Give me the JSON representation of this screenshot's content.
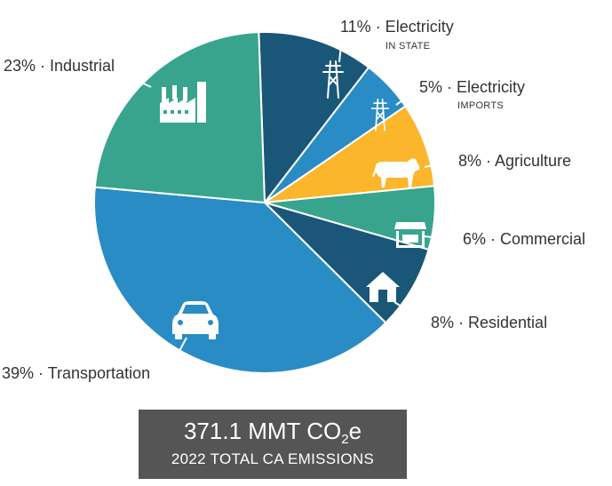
{
  "chart_data": {
    "type": "pie",
    "slices": [
      {
        "label": "Electricity",
        "sublabel": "IN STATE",
        "value": 11,
        "percent_label": "11%",
        "color": "#1a5678",
        "icon": "power-tower-icon"
      },
      {
        "label": "Electricity",
        "sublabel": "IMPORTS",
        "value": 5,
        "percent_label": "5%",
        "color": "#2a8cc4",
        "icon": "power-tower-icon"
      },
      {
        "label": "Agriculture",
        "value": 8,
        "percent_label": "8%",
        "color": "#fbb62b",
        "icon": "cow-icon"
      },
      {
        "label": "Commercial",
        "value": 6,
        "percent_label": "6%",
        "color": "#38a48e",
        "icon": "storefront-icon"
      },
      {
        "label": "Residential",
        "value": 8,
        "percent_label": "8%",
        "color": "#1a5678",
        "icon": "house-icon"
      },
      {
        "label": "Transportation",
        "value": 39,
        "percent_label": "39%",
        "color": "#2a8cc4",
        "icon": "car-icon"
      },
      {
        "label": "Industrial",
        "value": 23,
        "percent_label": "23%",
        "color": "#38a48e",
        "icon": "factory-icon"
      }
    ],
    "separator": "·"
  },
  "total": {
    "value_prefix": "371.1 MMT CO",
    "value_subscript": "2",
    "value_suffix": "e",
    "caption": "2022 TOTAL CA EMISSIONS"
  }
}
